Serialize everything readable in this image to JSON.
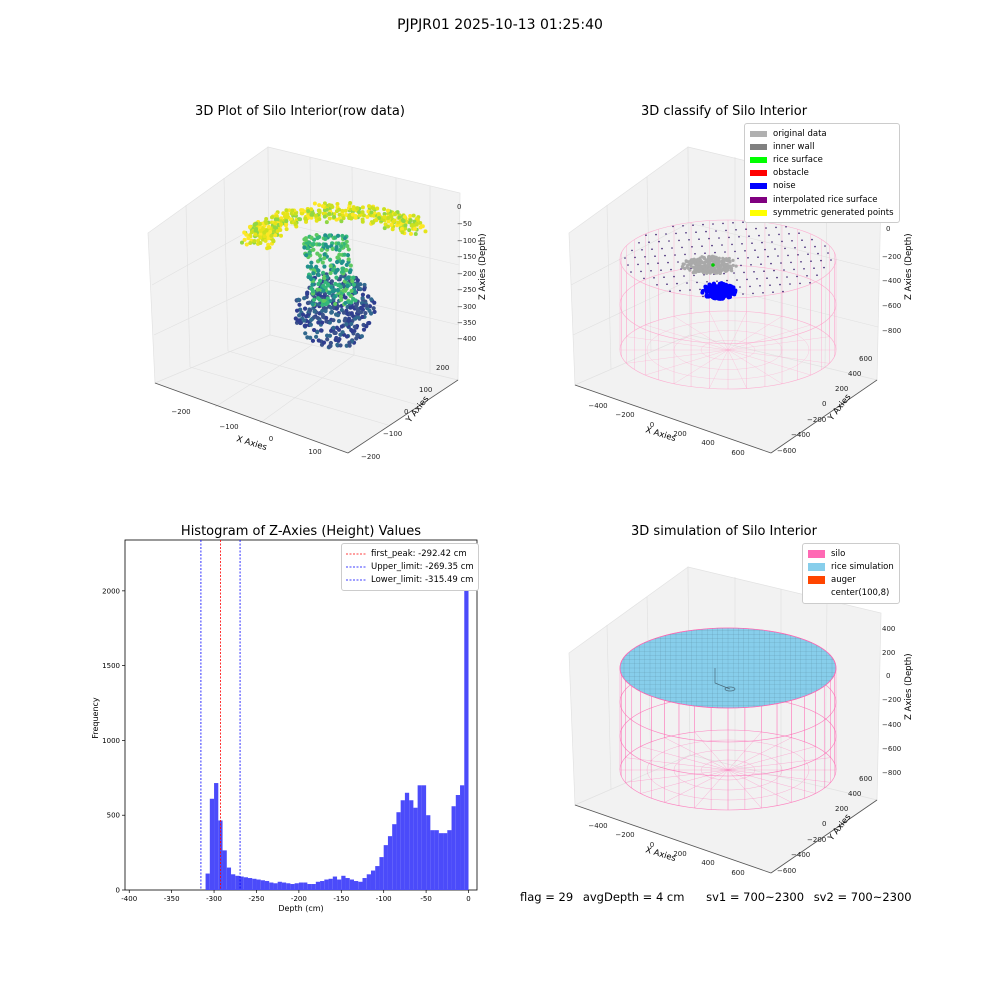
{
  "suptitle": "PJPJR01 2025-10-13 01:25:40",
  "panels": {
    "raw": {
      "title": "3D Plot of Silo Interior(row data)",
      "xlabel": "X Axies",
      "ylabel": "Y Axies",
      "zlabel": "Z Axies (Depth)",
      "xticks": [
        "−200",
        "−100",
        "0",
        "100"
      ],
      "yticks": [
        "−200",
        "−100",
        "0",
        "100",
        "200"
      ],
      "zticks": [
        "0",
        "−50",
        "−100",
        "−150",
        "−200",
        "−250",
        "−300",
        "−350",
        "−400"
      ]
    },
    "classify": {
      "title": "3D classify of Silo Interior",
      "xlabel": "X Axies",
      "ylabel": "Y Axies",
      "zlabel": "Z Axies (Depth)",
      "xticks": [
        "−400",
        "−200",
        "0",
        "200",
        "400",
        "600"
      ],
      "yticks": [
        "−600",
        "−400",
        "−200",
        "0",
        "200",
        "400",
        "600"
      ],
      "zticks": [
        "200",
        "0",
        "−200",
        "−400",
        "−600",
        "−800"
      ],
      "legend": [
        {
          "label": "original data",
          "color": "#b0b0b0"
        },
        {
          "label": "inner wall",
          "color": "#808080"
        },
        {
          "label": "rice surface",
          "color": "#00ff00"
        },
        {
          "label": "obstacle",
          "color": "#ff0000"
        },
        {
          "label": "noise",
          "color": "#0000ff"
        },
        {
          "label": "interpolated rice surface",
          "color": "#800080"
        },
        {
          "label": "symmetric generated points",
          "color": "#ffff00"
        }
      ]
    },
    "histogram": {
      "title": "Histogram of Z-Axies (Height) Values",
      "xlabel": "Depth (cm)",
      "ylabel": "Frequency",
      "legend": [
        {
          "label": "first_peak: -292.42 cm",
          "color": "#ff0000"
        },
        {
          "label": "Upper_limit: -269.35 cm",
          "color": "#0000ff"
        },
        {
          "label": "Lower_limit: -315.49 cm",
          "color": "#0000ff"
        }
      ]
    },
    "simulation": {
      "title": "3D simulation of Silo Interior",
      "xlabel": "X Axies",
      "ylabel": "Y Axies",
      "zlabel": "Z Axies (Depth)",
      "xticks": [
        "−400",
        "−200",
        "0",
        "200",
        "400",
        "600"
      ],
      "yticks": [
        "−600",
        "−400",
        "−200",
        "0",
        "200",
        "400",
        "600"
      ],
      "zticks": [
        "400",
        "200",
        "0",
        "−200",
        "−400",
        "−600",
        "−800"
      ],
      "legend": [
        {
          "label": "silo",
          "color": "#ff69b4"
        },
        {
          "label": "rice simulation",
          "color": "#87ceeb"
        },
        {
          "label": "auger",
          "color": "#ff4500"
        },
        {
          "label": "center(100,8)",
          "color": "#ffffff"
        }
      ]
    }
  },
  "status": {
    "flag": "flag = 29",
    "avg_depth": "avgDepth = 4 cm",
    "sv1": "sv1 = 700~2300",
    "sv2": "sv2 = 700~2300"
  },
  "chart_data": {
    "type": "bar",
    "title": "Histogram of Z-Axies (Height) Values",
    "xlabel": "Depth (cm)",
    "ylabel": "Frequency",
    "xlim": [
      -405,
      10
    ],
    "ylim": [
      0,
      2340
    ],
    "xticks": [
      -400,
      -350,
      -300,
      -250,
      -200,
      -150,
      -100,
      -50,
      0
    ],
    "yticks": [
      0,
      500,
      1000,
      1500,
      2000
    ],
    "bin_width": 5,
    "bin_starts": [
      -310,
      -305,
      -300,
      -295,
      -290,
      -285,
      -280,
      -275,
      -270,
      -265,
      -260,
      -255,
      -250,
      -245,
      -240,
      -235,
      -230,
      -225,
      -220,
      -215,
      -210,
      -205,
      -200,
      -195,
      -190,
      -185,
      -180,
      -175,
      -170,
      -165,
      -160,
      -155,
      -150,
      -145,
      -140,
      -135,
      -130,
      -125,
      -120,
      -115,
      -110,
      -105,
      -100,
      -95,
      -90,
      -85,
      -80,
      -75,
      -70,
      -65,
      -60,
      -55,
      -50,
      -45,
      -40,
      -35,
      -30,
      -25,
      -20,
      -15,
      -10,
      -5
    ],
    "values": [
      110,
      610,
      715,
      465,
      265,
      150,
      105,
      95,
      90,
      85,
      80,
      75,
      70,
      65,
      60,
      50,
      45,
      55,
      50,
      45,
      40,
      45,
      50,
      50,
      40,
      40,
      55,
      60,
      70,
      75,
      90,
      70,
      95,
      80,
      70,
      60,
      55,
      80,
      105,
      130,
      160,
      220,
      300,
      360,
      440,
      520,
      600,
      650,
      600,
      550,
      700,
      700,
      500,
      400,
      400,
      380,
      380,
      400,
      560,
      635,
      700,
      2240
    ],
    "vlines": [
      {
        "label": "first_peak: -292.42 cm",
        "x": -292.42,
        "color": "#ff0000"
      },
      {
        "label": "Upper_limit: -269.35 cm",
        "x": -269.35,
        "color": "#0000ff"
      },
      {
        "label": "Lower_limit: -315.49 cm",
        "x": -315.49,
        "color": "#0000ff"
      }
    ],
    "bar_color": "#4b4bfa",
    "legend_position": "top-right"
  }
}
